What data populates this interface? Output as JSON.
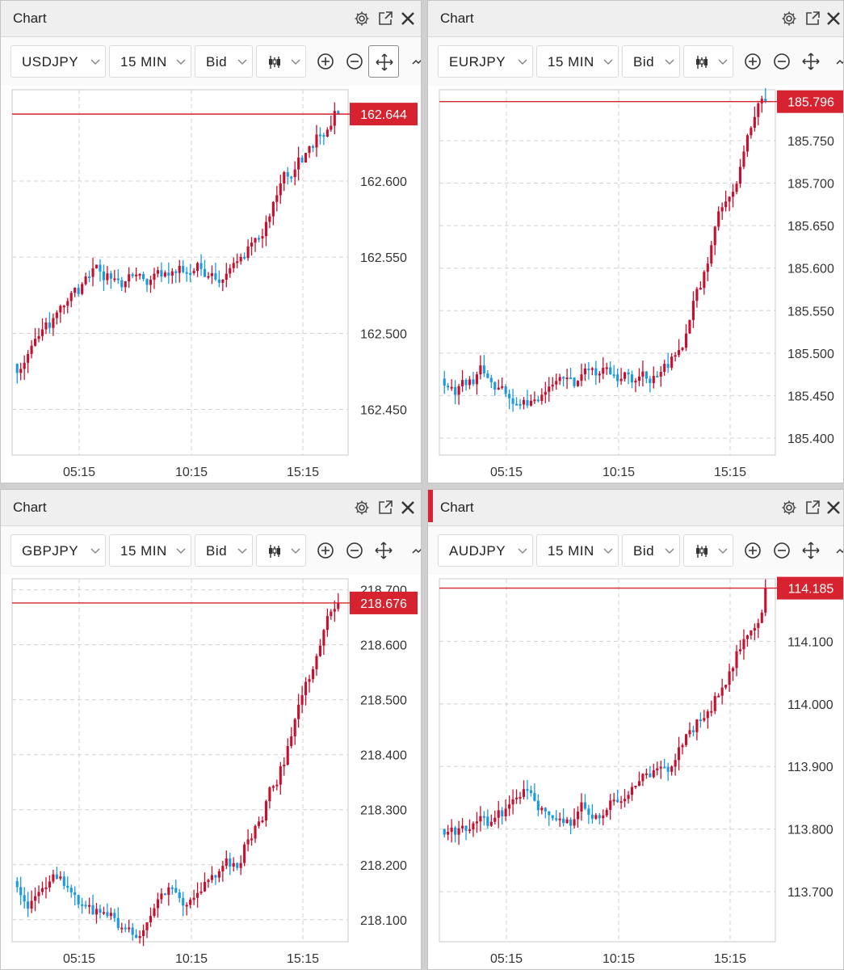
{
  "colors": {
    "up": "#c8102e",
    "down": "#1a9ae0",
    "price_line": "#d6232f",
    "grid": "#d0d0d0"
  },
  "icons": {
    "settings": "gear-icon",
    "popout": "external-window-icon",
    "close": "close-icon",
    "candles": "candlestick-icon",
    "zoom_in": "zoom-in-icon",
    "zoom_out": "zoom-out-icon",
    "pan": "move-arrows-icon"
  },
  "panels": [
    {
      "title": "Chart",
      "symbol": "USDJPY",
      "interval": "15 MIN",
      "price_type": "Bid",
      "chart_data": {
        "type": "candlestick",
        "current_price": "162.644",
        "y_ticks": [
          "162.450",
          "162.500",
          "162.550",
          "162.600"
        ],
        "x_ticks": [
          "05:15",
          "10:15",
          "15:15"
        ],
        "ylim": [
          162.42,
          162.66
        ],
        "start": 162.48,
        "end": 162.644,
        "points": 90
      }
    },
    {
      "title": "Chart",
      "symbol": "EURJPY",
      "interval": "15 MIN",
      "price_type": "Bid",
      "chart_data": {
        "type": "candlestick",
        "current_price": "185.796",
        "y_ticks": [
          "185.400",
          "185.450",
          "185.500",
          "185.550",
          "185.600",
          "185.650",
          "185.700",
          "185.750"
        ],
        "x_ticks": [
          "05:15",
          "10:15",
          "15:15"
        ],
        "ylim": [
          185.38,
          185.81
        ],
        "start": 185.47,
        "end": 185.796,
        "points": 90
      }
    },
    {
      "title": "Chart",
      "symbol": "GBPJPY",
      "interval": "15 MIN",
      "price_type": "Bid",
      "chart_data": {
        "type": "candlestick",
        "current_price": "218.676",
        "y_ticks": [
          "218.100",
          "218.200",
          "218.300",
          "218.400",
          "218.500",
          "218.600",
          "218.700"
        ],
        "x_ticks": [
          "05:15",
          "10:15",
          "15:15"
        ],
        "ylim": [
          218.06,
          218.72
        ],
        "start": 218.17,
        "end": 218.676,
        "points": 90
      }
    },
    {
      "title": "Chart",
      "symbol": "AUDJPY",
      "interval": "15 MIN",
      "price_type": "Bid",
      "chart_data": {
        "type": "candlestick",
        "current_price": "114.185",
        "y_ticks": [
          "113.700",
          "113.800",
          "113.900",
          "114.000",
          "114.100"
        ],
        "x_ticks": [
          "05:15",
          "10:15",
          "15:15"
        ],
        "ylim": [
          113.62,
          114.2
        ],
        "start": 113.8,
        "end": 114.185,
        "points": 90
      }
    }
  ]
}
